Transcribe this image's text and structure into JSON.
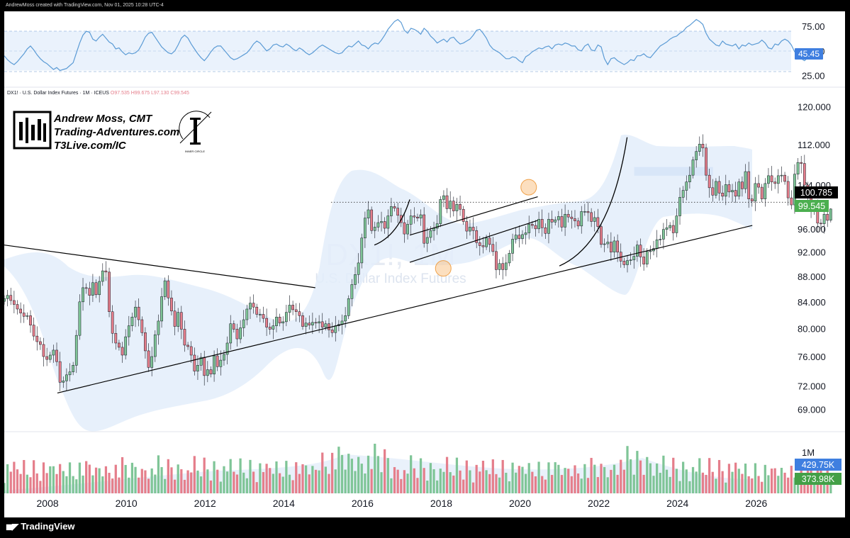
{
  "header": {
    "created_text": "AndrewMoss created with TradingView.com, Nov 01, 2025 10:28 UTC-4"
  },
  "footer": {
    "brand": "TradingView"
  },
  "symbol_info": {
    "name": "DX1! · U.S. Dollar Index Futures · 1M · ICEUS",
    "open": "O97.535",
    "high": "H99.675",
    "low": "L97.130",
    "close": "C99.545"
  },
  "watermark": {
    "ticker": "DX1!, 1M",
    "description": "U.S. Dollar Index Futures"
  },
  "branding": {
    "name": "Andrew Moss, CMT",
    "site1": "Trading-Adventures.com",
    "site2": "T3Live.com/IC",
    "logo_caption": "INNER CIRCLE"
  },
  "colors": {
    "up": "#7fc597",
    "down": "#e57e8b",
    "rsi_line": "#5b9bd5",
    "rsi_band": "#eaf2fc",
    "bollinger": "#e3edfa",
    "price_tag": "#000000",
    "last_tag": "#4caf50",
    "vol_tag_blue": "#3f7fe0",
    "vol_tag_green": "#43a047",
    "circle": "#f9c48a"
  },
  "chart_data": [
    {
      "type": "line",
      "title": "RSI",
      "ylim": [
        18,
        86
      ],
      "yticks": [
        "75.00",
        "50.00",
        "25.00"
      ],
      "band": [
        30,
        70
      ],
      "current_value": "45.45",
      "x_start": 2006.9,
      "x_end": 2025.83,
      "step": 0.0833,
      "values": [
        45,
        41,
        38,
        36,
        39,
        43,
        47,
        52,
        55,
        51,
        46,
        42,
        39,
        37,
        34,
        31,
        33,
        30,
        31,
        32,
        35,
        38,
        48,
        58,
        66,
        70,
        69,
        62,
        60,
        64,
        67,
        63,
        59,
        57,
        52,
        53,
        49,
        46,
        48,
        47,
        48,
        51,
        57,
        64,
        68,
        69,
        64,
        59,
        54,
        51,
        48,
        47,
        50,
        56,
        63,
        66,
        63,
        57,
        52,
        47,
        43,
        40,
        44,
        49,
        53,
        55,
        55,
        51,
        47,
        43,
        41,
        42,
        44,
        46,
        48,
        52,
        57,
        60,
        58,
        54,
        50,
        52,
        56,
        57,
        55,
        54,
        57,
        55,
        52,
        50,
        53,
        51,
        48,
        46,
        48,
        51,
        54,
        56,
        54,
        52,
        50,
        48,
        47,
        48,
        52,
        55,
        54,
        57,
        60,
        56,
        55,
        52,
        56,
        58,
        57,
        61,
        66,
        72,
        76,
        80,
        82,
        79,
        71,
        68,
        73,
        72,
        70,
        67,
        73,
        70,
        65,
        62,
        58,
        60,
        62,
        59,
        63,
        64,
        60,
        57,
        58,
        60,
        62,
        66,
        71,
        72,
        68,
        63,
        56,
        52,
        50,
        48,
        45,
        42,
        42,
        44,
        43,
        40,
        38,
        44,
        46,
        49,
        51,
        53,
        52,
        54,
        55,
        52,
        56,
        57,
        56,
        58,
        57,
        55,
        55,
        51,
        50,
        55,
        57,
        51,
        50,
        56,
        54,
        42,
        36,
        42,
        43,
        40,
        38,
        36,
        38,
        41,
        40,
        45,
        45,
        47,
        44,
        43,
        47,
        51,
        55,
        57,
        59,
        62,
        64,
        65,
        68,
        70,
        74,
        76,
        79,
        82,
        80,
        77,
        68,
        62,
        59,
        56,
        55,
        60,
        57,
        56,
        55,
        57,
        52,
        56,
        55,
        58,
        56,
        57,
        58,
        61,
        58,
        53,
        52,
        57,
        56,
        60,
        62,
        60,
        56,
        49,
        47,
        42,
        40,
        43,
        45,
        43,
        45,
        45
      ]
    },
    {
      "type": "candlestick",
      "title": "DX1! · U.S. Dollar Index Futures · 1M · ICEUS",
      "yscale": "log",
      "ylim": [
        66.5,
        122
      ],
      "yticks": [
        "120.000",
        "112.000",
        "104.000",
        "96.000",
        "92.000",
        "88.000",
        "84.000",
        "80.000",
        "76.000",
        "72.000",
        "69.000"
      ],
      "xticks": [
        "2008",
        "2010",
        "2012",
        "2014",
        "2016",
        "2018",
        "2020",
        "2022",
        "2024",
        "2026"
      ],
      "x_start": 2006.9,
      "x_end": 2025.83,
      "step": 0.0833,
      "closes": [
        84.5,
        85.0,
        84.2,
        83.6,
        82.9,
        82.3,
        81.8,
        81.9,
        80.5,
        78.9,
        78.1,
        77.7,
        76.0,
        75.6,
        76.2,
        76.9,
        75.3,
        72.5,
        72.7,
        73.5,
        73.9,
        74.8,
        79.0,
        84.0,
        86.2,
        86.1,
        85.0,
        87.0,
        85.1,
        87.2,
        88.9,
        88.7,
        82.5,
        79.3,
        77.9,
        77.3,
        76.2,
        78.8,
        80.4,
        81.7,
        83.2,
        81.3,
        79.4,
        76.8,
        74.5,
        76.0,
        79.1,
        81.1,
        84.8,
        87.3,
        84.6,
        82.6,
        80.3,
        82.4,
        79.9,
        77.6,
        77.4,
        76.2,
        74.0,
        74.8,
        75.9,
        73.4,
        74.2,
        73.6,
        76.1,
        74.6,
        75.5,
        76.3,
        77.9,
        80.7,
        79.9,
        78.5,
        80.1,
        81.3,
        82.9,
        83.8,
        83.2,
        82.1,
        82.1,
        81.5,
        80.2,
        79.9,
        80.4,
        81.7,
        80.8,
        81.0,
        82.4,
        83.5,
        82.8,
        82.5,
        81.9,
        80.3,
        80.8,
        80.5,
        80.9,
        80.8,
        81.0,
        80.2,
        80.7,
        79.8,
        79.4,
        80.4,
        80.6,
        81.1,
        81.9,
        84.5,
        86.7,
        88.3,
        90.2,
        94.4,
        97.9,
        99.4,
        95.7,
        96.3,
        97.1,
        97.3,
        96.1,
        98.3,
        100.0,
        99.7,
        98.4,
        97.1,
        95.1,
        96.8,
        98.3,
        98.1,
        97.9,
        98.5,
        93.5,
        94.5,
        95.7,
        96.1,
        96.9,
        101.3,
        102.0,
        99.6,
        101.0,
        99.2,
        100.4,
        99.5,
        97.3,
        95.6,
        96.3,
        95.7,
        93.6,
        93.1,
        92.9,
        94.4,
        93.3,
        92.1,
        89.1,
        90.1,
        89.1,
        90.2,
        91.8,
        94.2,
        94.9,
        94.3,
        95.0,
        95.3,
        96.8,
        96.6,
        96.0,
        97.7,
        96.2,
        95.2,
        97.7,
        97.2,
        97.6,
        98.2,
        96.3,
        98.6,
        98.1,
        97.8,
        97.4,
        96.5,
        99.1,
        99.1,
        98.9,
        97.3,
        98.0,
        96.4,
        93.3,
        93.4,
        93.7,
        92.0,
        93.9,
        92.0,
        90.5,
        89.9,
        90.6,
        90.7,
        91.3,
        93.2,
        91.2,
        90.0,
        92.1,
        92.2,
        92.6,
        94.1,
        94.2,
        95.9,
        96.2,
        96.6,
        95.3,
        98.3,
        101.7,
        103.0,
        104.6,
        105.9,
        108.9,
        110.6,
        112.1,
        111.3,
        105.9,
        103.5,
        102.1,
        104.7,
        102.5,
        101.9,
        104.1,
        102.7,
        103.0,
        101.9,
        104.6,
        103.3,
        106.6,
        101.4,
        101.0,
        104.3,
        103.6,
        101.4,
        104.3,
        105.8,
        104.6,
        104.3,
        105.8,
        105.9,
        104.7,
        101.6,
        100.3,
        106.1,
        108.4,
        108.2,
        104.0,
        101.6,
        99.3,
        99.5,
        97.0,
        96.9,
        98.6,
        97.5,
        99.55
      ],
      "ohlc_last": {
        "open": 97.535,
        "high": 99.675,
        "low": 97.13,
        "close": 99.545
      },
      "level_line": {
        "value": "100.785"
      },
      "last_price": "99.545",
      "trendlines": [
        {
          "from": [
            2006.9,
            93.2
          ],
          "to": [
            2014.8,
            86.2
          ]
        },
        {
          "from": [
            2008.25,
            71.1
          ],
          "to": [
            2025.9,
            96.6
          ]
        },
        {
          "from": [
            2017.2,
            94.9
          ],
          "to": [
            2020.45,
            101.8
          ]
        },
        {
          "from": [
            2017.2,
            90.3
          ],
          "to": [
            2020.45,
            97.5
          ]
        },
        {
          "from": [
            2015.2,
            100.8
          ],
          "to": [
            2025.83,
            100.8
          ],
          "style": "dotted"
        }
      ],
      "circles": [
        {
          "x": 2018.05,
          "y": 89.3
        },
        {
          "x": 2020.22,
          "y": 103.6
        }
      ],
      "curves": [
        {
          "from": [
            2016.3,
            93.2
          ],
          "ctrl": [
            2016.9,
            94.8
          ],
          "to": [
            2017.2,
            101.3
          ]
        },
        {
          "from": [
            2021.0,
            89.7
          ],
          "ctrl": [
            2022.3,
            93.5
          ],
          "to": [
            2022.72,
            113.5
          ]
        }
      ],
      "consolidation_box": {
        "x": [
          2022.9,
          2024.9
        ],
        "y": [
          105.8,
          107.5
        ]
      }
    },
    {
      "type": "bar",
      "title": "Volume",
      "ylim": [
        0,
        1000000
      ],
      "yticks": [
        "1M"
      ],
      "current_values": [
        "429.75K",
        "373.98K"
      ]
    }
  ]
}
